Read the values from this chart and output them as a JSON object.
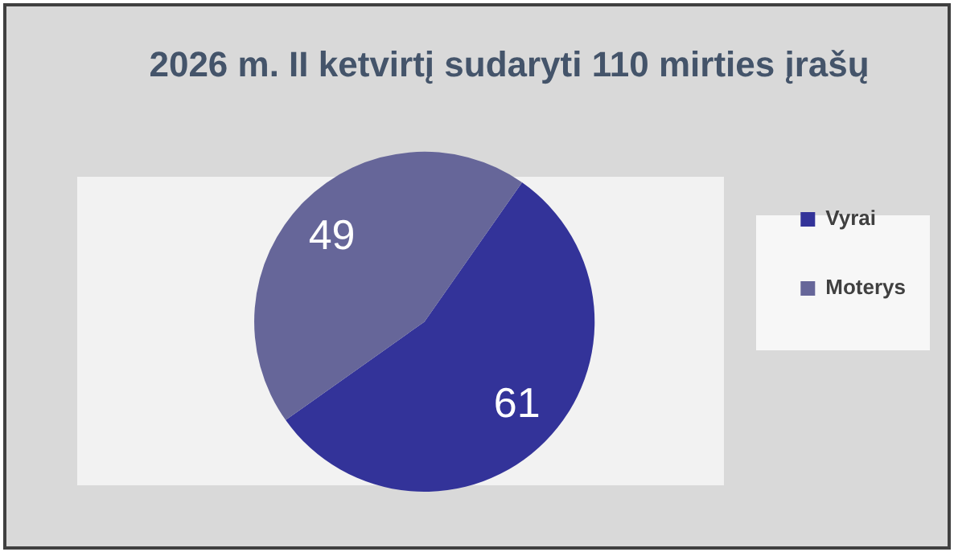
{
  "chart_data": {
    "type": "pie",
    "title": "2026 m. II ketvirtį sudaryti 110 mirties įrašų",
    "categories": [
      "Vyrai",
      "Moterys"
    ],
    "values": [
      61,
      49
    ],
    "colors": [
      "#333399",
      "#666699"
    ],
    "data_labels": true,
    "legend": "right"
  }
}
